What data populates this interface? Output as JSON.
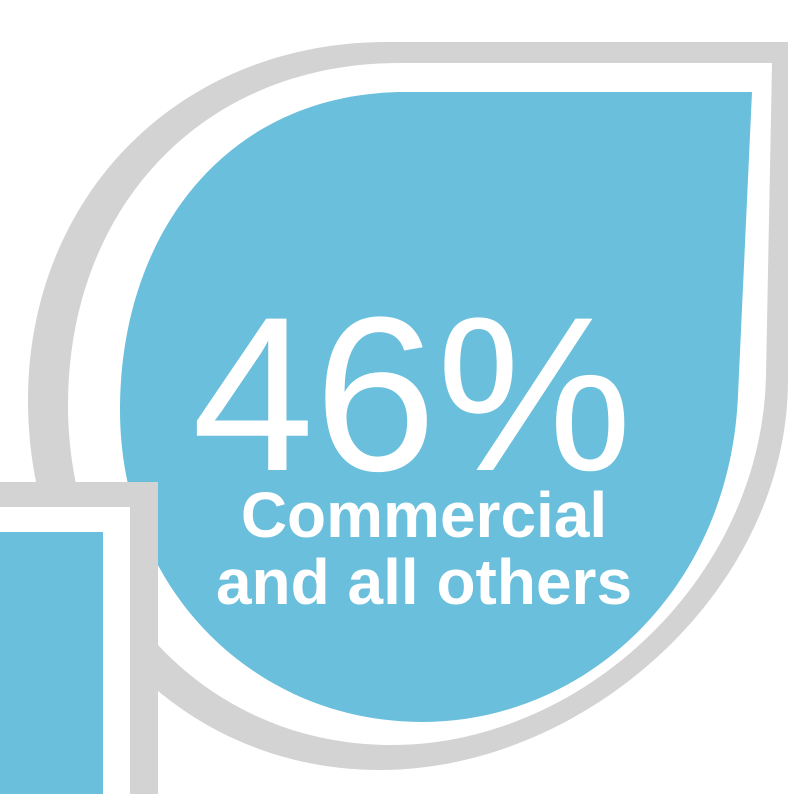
{
  "infographic": {
    "value": "46%",
    "label_line_1": "Commercial",
    "label_line_2": "and all others"
  },
  "colors": {
    "accent": "#69BFDC",
    "frame": "#D3D3D3",
    "text": "#FFFFFF",
    "background": "#FFFFFF"
  }
}
